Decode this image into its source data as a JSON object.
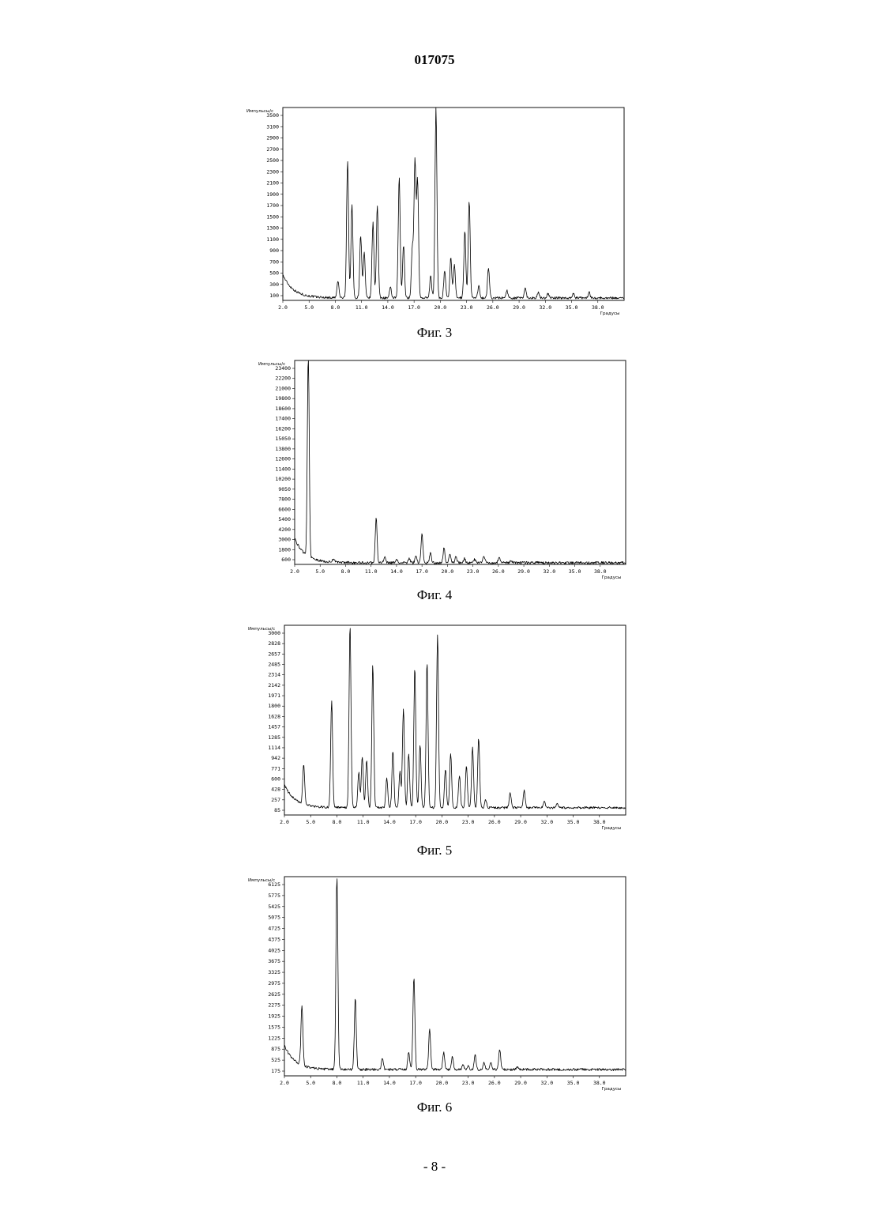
{
  "document_number": "017075",
  "page_number": "- 8 -",
  "chart_data": [
    {
      "type": "line",
      "caption": "Фиг. 3",
      "ylabel": "Импульсы/с",
      "xlabel": "Градусы",
      "xlim": [
        2.0,
        41.0
      ],
      "ylim": [
        100,
        3950
      ],
      "x_ticks": [
        "2.0",
        "5.0",
        "8.0",
        "11.0",
        "14.0",
        "17.0",
        "20.0",
        "23.0",
        "26.0",
        "29.0",
        "32.0",
        "35.0",
        "38.0"
      ],
      "y_ticks": [
        "3500",
        "3100",
        "2900",
        "2700",
        "2500",
        "2300",
        "2100",
        "1900",
        "1700",
        "1500",
        "1300",
        "1100",
        "900",
        "700",
        "500",
        "300",
        "100"
      ],
      "baseline": 150,
      "peaks": [
        {
          "x": 8.3,
          "y": 480
        },
        {
          "x": 9.4,
          "y": 2900
        },
        {
          "x": 9.9,
          "y": 2000
        },
        {
          "x": 10.9,
          "y": 1400
        },
        {
          "x": 11.3,
          "y": 1050
        },
        {
          "x": 12.3,
          "y": 1650
        },
        {
          "x": 12.8,
          "y": 2000
        },
        {
          "x": 14.3,
          "y": 350
        },
        {
          "x": 15.3,
          "y": 2550
        },
        {
          "x": 15.8,
          "y": 1200
        },
        {
          "x": 16.8,
          "y": 1150
        },
        {
          "x": 17.1,
          "y": 2850
        },
        {
          "x": 17.4,
          "y": 2500
        },
        {
          "x": 18.9,
          "y": 600
        },
        {
          "x": 19.5,
          "y": 3950
        },
        {
          "x": 20.5,
          "y": 700
        },
        {
          "x": 21.2,
          "y": 950
        },
        {
          "x": 21.6,
          "y": 800
        },
        {
          "x": 22.8,
          "y": 1500
        },
        {
          "x": 23.3,
          "y": 2100
        },
        {
          "x": 24.4,
          "y": 380
        },
        {
          "x": 25.5,
          "y": 750
        },
        {
          "x": 27.6,
          "y": 300
        },
        {
          "x": 29.7,
          "y": 350
        },
        {
          "x": 31.2,
          "y": 250
        },
        {
          "x": 32.3,
          "y": 240
        },
        {
          "x": 35.2,
          "y": 230
        },
        {
          "x": 37.0,
          "y": 260
        }
      ]
    },
    {
      "type": "line",
      "caption": "Фиг. 4",
      "ylabel": "Импульсы/с",
      "xlabel": "Градусы",
      "xlim": [
        2.0,
        41.0
      ],
      "ylim": [
        0,
        24300
      ],
      "x_ticks": [
        "2.0",
        "5.0",
        "8.0",
        "11.0",
        "14.0",
        "17.0",
        "20.0",
        "23.0",
        "26.0",
        "29.0",
        "32.0",
        "35.0",
        "38.0"
      ],
      "y_ticks": [
        "23400",
        "22200",
        "21000",
        "19800",
        "18600",
        "17400",
        "16200",
        "15050",
        "13800",
        "12600",
        "11400",
        "10200",
        "9050",
        "7800",
        "6600",
        "5400",
        "4200",
        "3000",
        "1800",
        "600"
      ],
      "baseline": 200,
      "peaks": [
        {
          "x": 3.6,
          "y": 24300
        },
        {
          "x": 6.6,
          "y": 700
        },
        {
          "x": 11.6,
          "y": 5500
        },
        {
          "x": 12.6,
          "y": 900
        },
        {
          "x": 14.0,
          "y": 600
        },
        {
          "x": 15.5,
          "y": 700
        },
        {
          "x": 16.3,
          "y": 1100
        },
        {
          "x": 17.0,
          "y": 3600
        },
        {
          "x": 18.0,
          "y": 1300
        },
        {
          "x": 19.6,
          "y": 2000
        },
        {
          "x": 20.3,
          "y": 1300
        },
        {
          "x": 21.0,
          "y": 900
        },
        {
          "x": 22.0,
          "y": 700
        },
        {
          "x": 23.2,
          "y": 600
        },
        {
          "x": 24.3,
          "y": 1000
        },
        {
          "x": 26.1,
          "y": 900
        },
        {
          "x": 27.5,
          "y": 500
        },
        {
          "x": 29.0,
          "y": 350
        }
      ]
    },
    {
      "type": "line",
      "caption": "Фиг. 5",
      "ylabel": "Импульсы/с",
      "xlabel": "Градусы",
      "xlim": [
        2.0,
        41.0
      ],
      "ylim": [
        0,
        3100
      ],
      "x_ticks": [
        "2.0",
        "5.0",
        "8.0",
        "11.0",
        "14.0",
        "17.0",
        "20.0",
        "23.0",
        "26.0",
        "29.0",
        "32.0",
        "35.0",
        "38.0"
      ],
      "y_ticks": [
        "3000",
        "2828",
        "2657",
        "2485",
        "2314",
        "2142",
        "1971",
        "1800",
        "1628",
        "1457",
        "1285",
        "1114",
        "942",
        "771",
        "600",
        "428",
        "257",
        "85"
      ],
      "baseline": 120,
      "peaks": [
        {
          "x": 4.2,
          "y": 780
        },
        {
          "x": 7.4,
          "y": 1850
        },
        {
          "x": 9.5,
          "y": 3100
        },
        {
          "x": 10.5,
          "y": 700
        },
        {
          "x": 10.9,
          "y": 950
        },
        {
          "x": 11.4,
          "y": 900
        },
        {
          "x": 12.1,
          "y": 2450
        },
        {
          "x": 13.7,
          "y": 600
        },
        {
          "x": 14.4,
          "y": 1050
        },
        {
          "x": 15.2,
          "y": 700
        },
        {
          "x": 15.6,
          "y": 1750
        },
        {
          "x": 16.2,
          "y": 1000
        },
        {
          "x": 16.9,
          "y": 2400
        },
        {
          "x": 17.5,
          "y": 1150
        },
        {
          "x": 18.3,
          "y": 2500
        },
        {
          "x": 19.5,
          "y": 2950
        },
        {
          "x": 20.4,
          "y": 750
        },
        {
          "x": 21.0,
          "y": 1000
        },
        {
          "x": 22.0,
          "y": 650
        },
        {
          "x": 22.8,
          "y": 800
        },
        {
          "x": 23.5,
          "y": 1100
        },
        {
          "x": 24.2,
          "y": 1250
        },
        {
          "x": 25.0,
          "y": 250
        },
        {
          "x": 27.8,
          "y": 350
        },
        {
          "x": 29.4,
          "y": 400
        },
        {
          "x": 31.7,
          "y": 230
        },
        {
          "x": 33.2,
          "y": 200
        }
      ]
    },
    {
      "type": "line",
      "caption": "Фиг. 6",
      "ylabel": "Импульсы/с",
      "xlabel": "Градусы",
      "xlim": [
        2.0,
        41.0
      ],
      "ylim": [
        0,
        6300
      ],
      "x_ticks": [
        "2.0",
        "5.0",
        "8.0",
        "11.0",
        "14.0",
        "17.0",
        "20.0",
        "23.0",
        "26.0",
        "29.0",
        "32.0",
        "35.0",
        "38.0"
      ],
      "y_ticks": [
        "6125",
        "5775",
        "5425",
        "5075",
        "4725",
        "4375",
        "4025",
        "3675",
        "3325",
        "2975",
        "2625",
        "2275",
        "1925",
        "1575",
        "1225",
        "875",
        "525",
        "175"
      ],
      "baseline": 200,
      "peaks": [
        {
          "x": 4.0,
          "y": 2100
        },
        {
          "x": 8.0,
          "y": 6300
        },
        {
          "x": 10.1,
          "y": 2450
        },
        {
          "x": 13.2,
          "y": 550
        },
        {
          "x": 16.2,
          "y": 750
        },
        {
          "x": 16.8,
          "y": 3100
        },
        {
          "x": 18.6,
          "y": 1500
        },
        {
          "x": 20.2,
          "y": 750
        },
        {
          "x": 21.2,
          "y": 600
        },
        {
          "x": 22.4,
          "y": 350
        },
        {
          "x": 23.0,
          "y": 300
        },
        {
          "x": 23.8,
          "y": 650
        },
        {
          "x": 24.8,
          "y": 400
        },
        {
          "x": 25.6,
          "y": 400
        },
        {
          "x": 26.6,
          "y": 850
        },
        {
          "x": 28.6,
          "y": 280
        },
        {
          "x": 31.4,
          "y": 220
        },
        {
          "x": 33.0,
          "y": 200
        },
        {
          "x": 35.0,
          "y": 210
        }
      ]
    }
  ]
}
